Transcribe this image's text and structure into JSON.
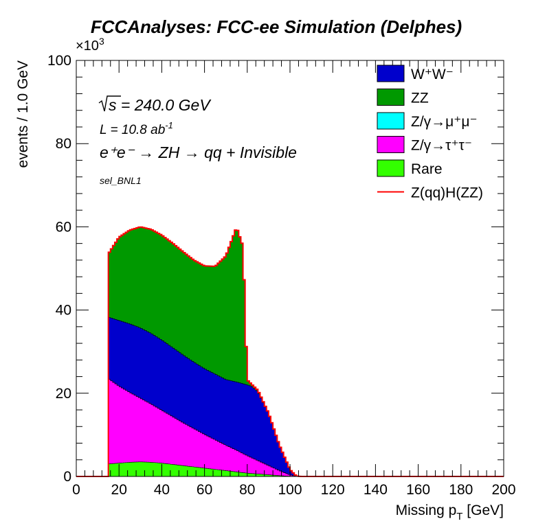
{
  "chart_data": {
    "type": "area",
    "title": "FCCAnalyses: FCC-ee Simulation (Delphes)",
    "xlabel": "Missing p",
    "xlabel_sub": "T",
    "xlabel_unit": " [GeV]",
    "ylabel": "events / 1.0 GeV",
    "y_exponent": "×10",
    "y_exponent_power": "3",
    "xlim": [
      0,
      200
    ],
    "ylim": [
      0,
      100
    ],
    "xticks": [
      0,
      20,
      40,
      60,
      80,
      100,
      120,
      140,
      160,
      180,
      200
    ],
    "yticks": [
      0,
      20,
      40,
      60,
      80,
      100
    ],
    "annotations": {
      "sqrt_s": "s = 240.0 GeV",
      "lumi": "L = 10.8 ab",
      "lumi_power": "-1",
      "process": "e⁺e⁻ → ZH → qq + Invisible",
      "selection": "sel_BNL1"
    },
    "legend_position": "top-right",
    "x": [
      15,
      20,
      25,
      30,
      35,
      40,
      45,
      50,
      55,
      60,
      65,
      70,
      75,
      78,
      80,
      82,
      85,
      90,
      95,
      100,
      103,
      105,
      200
    ],
    "stack": [
      {
        "name": "Rare",
        "legend": "Rare",
        "color": "#33ff00",
        "values": [
          3.0,
          3.2,
          3.4,
          3.5,
          3.4,
          3.2,
          2.9,
          2.6,
          2.3,
          2.0,
          1.7,
          1.4,
          1.1,
          0.9,
          0.8,
          0.7,
          0.6,
          0.4,
          0.2,
          0.05,
          0,
          0,
          0
        ]
      },
      {
        "name": "Z/γ→τ+τ-",
        "legend": "Z/γ→τ⁺τ⁻",
        "color": "#ff00ff",
        "values": [
          20.5,
          18.5,
          16.8,
          15.3,
          14.0,
          12.7,
          11.5,
          10.3,
          9.2,
          8.1,
          7.1,
          6.1,
          5.2,
          4.6,
          4.2,
          3.8,
          3.2,
          2.2,
          1.2,
          0.3,
          0,
          0,
          0
        ]
      },
      {
        "name": "Z/γ→μ+μ-",
        "legend": "Z/γ→μ⁺μ⁻",
        "color": "#00ffff",
        "values": [
          0,
          0,
          0,
          0,
          0,
          0,
          0,
          0,
          0,
          0,
          0,
          0,
          0,
          0,
          0,
          0,
          0,
          0,
          0,
          0,
          0,
          0,
          0
        ]
      },
      {
        "name": "W+W-",
        "legend": "W⁺W⁻",
        "color": "#0000cc",
        "values": [
          14.8,
          15.8,
          16.5,
          16.9,
          17.0,
          16.9,
          16.6,
          16.3,
          16.0,
          15.8,
          15.8,
          15.8,
          16.4,
          16.8,
          17.0,
          17.2,
          16.6,
          12.5,
          6.2,
          1.3,
          0.1,
          0,
          0
        ]
      },
      {
        "name": "ZZ",
        "legend": "ZZ",
        "color": "#009900",
        "values": [
          15.2,
          20.0,
          22.5,
          24.3,
          25.0,
          25.2,
          25.1,
          24.8,
          24.5,
          24.7,
          25.9,
          29.7,
          37.2,
          33.0,
          1.2,
          0.5,
          0.3,
          0.1,
          0,
          0,
          0,
          0,
          0
        ]
      }
    ],
    "overlay": {
      "name": "Z(qq)H(ZZ)",
      "legend": "Z(qq)H(ZZ)",
      "color": "#ff0000"
    },
    "legend_order": [
      "W+W-",
      "ZZ",
      "Z/γ→μ+μ-",
      "Z/γ→τ+τ-",
      "Rare",
      "Z(qq)H(ZZ)"
    ]
  }
}
